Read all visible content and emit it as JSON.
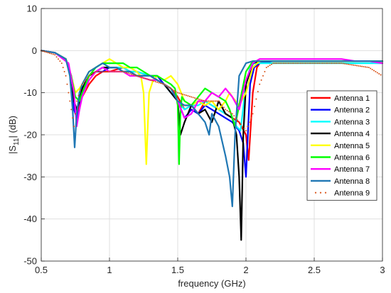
{
  "chart_data": {
    "type": "line",
    "xlabel": "frequency (GHz)",
    "ylabel": "|S11| (dB)",
    "ylabel_parts": {
      "main": "|S",
      "sub": "11",
      "rest": "| (dB)"
    },
    "xlim": [
      0.5,
      3
    ],
    "ylim": [
      -50,
      10
    ],
    "xticks": [
      0.5,
      1,
      1.5,
      2,
      2.5,
      3
    ],
    "yticks": [
      10,
      0,
      -10,
      -20,
      -30,
      -40,
      -50
    ],
    "xtick_labels": [
      "0.5",
      "1",
      "1.5",
      "2",
      "2.5",
      "3"
    ],
    "ytick_labels": [
      "10",
      "0",
      "-10",
      "-20",
      "-30",
      "-40",
      "-50"
    ],
    "grid": true,
    "legend_position": "right",
    "series": [
      {
        "name": "Antenna 1",
        "color": "#ff0000",
        "style": "solid",
        "x": [
          0.5,
          0.6,
          0.68,
          0.72,
          0.74,
          0.76,
          0.78,
          0.8,
          0.85,
          0.9,
          0.95,
          1.0,
          1.05,
          1.1,
          1.15,
          1.2,
          1.3,
          1.35,
          1.4,
          1.45,
          1.5,
          1.55,
          1.6,
          1.65,
          1.7,
          1.75,
          1.8,
          1.85,
          1.9,
          1.95,
          2.0,
          2.02,
          2.05,
          2.08,
          2.1,
          2.15,
          2.2,
          2.3,
          2.4,
          2.5,
          2.6,
          2.7,
          2.8,
          2.9,
          3.0
        ],
        "y": [
          0,
          -0.5,
          -2,
          -6,
          -12,
          -15,
          -13,
          -11,
          -8,
          -6,
          -5,
          -5,
          -4.5,
          -4,
          -5,
          -6,
          -6,
          -7,
          -8,
          -9,
          -11,
          -14,
          -13,
          -15,
          -12,
          -13,
          -14,
          -15,
          -16,
          -17,
          -20,
          -26,
          -10,
          -4,
          -3,
          -2.5,
          -2.5,
          -2.5,
          -2.5,
          -2.5,
          -2.5,
          -2.5,
          -2.5,
          -2.5,
          -2.5
        ]
      },
      {
        "name": "Antenna 2",
        "color": "#0000ff",
        "style": "solid",
        "x": [
          0.5,
          0.6,
          0.68,
          0.72,
          0.74,
          0.76,
          0.78,
          0.8,
          0.85,
          0.9,
          0.95,
          1.0,
          1.05,
          1.1,
          1.15,
          1.2,
          1.3,
          1.35,
          1.4,
          1.45,
          1.5,
          1.55,
          1.6,
          1.65,
          1.7,
          1.75,
          1.8,
          1.85,
          1.9,
          1.95,
          1.98,
          2.0,
          2.03,
          2.06,
          2.1,
          2.2,
          2.3,
          2.4,
          2.5,
          2.6,
          2.7,
          2.8,
          2.9,
          3.0
        ],
        "y": [
          0,
          -0.5,
          -2,
          -7,
          -14,
          -16,
          -14,
          -10,
          -6,
          -5,
          -5,
          -4,
          -4,
          -4,
          -5,
          -5,
          -6,
          -6,
          -8,
          -10,
          -12,
          -16,
          -14,
          -15,
          -13,
          -14,
          -15,
          -16,
          -17,
          -19,
          -22,
          -30,
          -8,
          -4,
          -3,
          -2.5,
          -2.5,
          -2.5,
          -2.5,
          -2.5,
          -2.5,
          -2.5,
          -2.5,
          -2.5
        ]
      },
      {
        "name": "Antenna 3",
        "color": "#00ffff",
        "style": "solid",
        "x": [
          0.5,
          0.6,
          0.68,
          0.72,
          0.74,
          0.76,
          0.78,
          0.8,
          0.85,
          0.9,
          0.95,
          1.0,
          1.05,
          1.1,
          1.15,
          1.2,
          1.3,
          1.35,
          1.4,
          1.45,
          1.5,
          1.55,
          1.6,
          1.65,
          1.7,
          1.75,
          1.8,
          1.85,
          1.9,
          1.93,
          1.96,
          2.0,
          2.03,
          2.06,
          2.1,
          2.2,
          2.3,
          2.4,
          2.5,
          2.6,
          2.7,
          2.8,
          2.9,
          3.0
        ],
        "y": [
          0,
          -0.5,
          -2,
          -6,
          -12,
          -14,
          -12,
          -9,
          -6,
          -5,
          -4,
          -4,
          -4,
          -4,
          -5,
          -5,
          -6,
          -7,
          -8,
          -10,
          -12,
          -14,
          -13,
          -13,
          -12,
          -13,
          -14,
          -15,
          -16,
          -18,
          -19,
          -8,
          -4,
          -3,
          -3,
          -3,
          -3,
          -3,
          -3,
          -3,
          -3,
          -3,
          -3,
          -3
        ]
      },
      {
        "name": "Antenna 4",
        "color": "#000000",
        "style": "solid",
        "x": [
          0.5,
          0.6,
          0.68,
          0.72,
          0.74,
          0.76,
          0.78,
          0.8,
          0.85,
          0.9,
          0.95,
          1.0,
          1.05,
          1.1,
          1.15,
          1.2,
          1.3,
          1.35,
          1.4,
          1.45,
          1.5,
          1.52,
          1.55,
          1.6,
          1.65,
          1.7,
          1.75,
          1.8,
          1.85,
          1.9,
          1.93,
          1.95,
          1.965,
          1.98,
          2.0,
          2.05,
          2.1,
          2.2,
          2.3,
          2.4,
          2.5,
          2.6,
          2.7,
          2.8,
          2.9,
          3.0
        ],
        "y": [
          0,
          -0.5,
          -2,
          -6,
          -12,
          -14,
          -12,
          -9,
          -6,
          -5,
          -4,
          -4,
          -4,
          -5,
          -5,
          -6,
          -6,
          -7,
          -8,
          -10,
          -12,
          -20,
          -17,
          -13,
          -15,
          -14,
          -17,
          -12,
          -15,
          -16,
          -20,
          -30,
          -45,
          -20,
          -8,
          -3,
          -2.5,
          -2.5,
          -2.5,
          -2.5,
          -2.5,
          -2.5,
          -2.5,
          -2.5,
          -2.5,
          -2.5
        ]
      },
      {
        "name": "Antenna 5",
        "color": "#ffff00",
        "style": "solid",
        "x": [
          0.5,
          0.6,
          0.68,
          0.72,
          0.75,
          0.78,
          0.8,
          0.85,
          0.9,
          0.95,
          1.0,
          1.05,
          1.1,
          1.15,
          1.2,
          1.23,
          1.25,
          1.27,
          1.29,
          1.32,
          1.35,
          1.4,
          1.45,
          1.5,
          1.55,
          1.6,
          1.65,
          1.7,
          1.75,
          1.8,
          1.85,
          1.88,
          1.9,
          1.95,
          2.0,
          2.05,
          2.1,
          2.2,
          2.3,
          2.4,
          2.5,
          2.6,
          2.7,
          2.8,
          2.9,
          3.0
        ],
        "y": [
          0,
          -0.5,
          -2,
          -6,
          -10,
          -9,
          -8,
          -5,
          -4,
          -3,
          -2,
          -3,
          -4,
          -4,
          -5,
          -6,
          -10,
          -27,
          -10,
          -7,
          -6,
          -7,
          -6,
          -8,
          -12,
          -13,
          -12,
          -13,
          -12,
          -14,
          -12,
          -10,
          -11,
          -13,
          -10,
          -4,
          -2.5,
          -2.5,
          -2.5,
          -2.5,
          -2.5,
          -2.5,
          -2.5,
          -2.5,
          -2.5,
          -2.5
        ]
      },
      {
        "name": "Antenna 6",
        "color": "#00ff00",
        "style": "solid",
        "x": [
          0.5,
          0.6,
          0.68,
          0.72,
          0.75,
          0.78,
          0.8,
          0.85,
          0.9,
          0.95,
          1.0,
          1.05,
          1.1,
          1.15,
          1.2,
          1.25,
          1.3,
          1.35,
          1.4,
          1.45,
          1.48,
          1.5,
          1.51,
          1.52,
          1.53,
          1.55,
          1.6,
          1.65,
          1.7,
          1.75,
          1.8,
          1.85,
          1.88,
          1.92,
          1.95,
          2.0,
          2.05,
          2.1,
          2.2,
          2.3,
          2.4,
          2.5,
          2.6,
          2.7,
          2.8,
          2.9,
          3.0
        ],
        "y": [
          0,
          -0.5,
          -2,
          -6,
          -11,
          -12,
          -10,
          -6,
          -4,
          -3,
          -3,
          -3,
          -3,
          -4,
          -4,
          -5,
          -6,
          -6,
          -7,
          -8,
          -9,
          -13,
          -27,
          -15,
          -11,
          -12,
          -13,
          -11,
          -9,
          -10,
          -11,
          -12,
          -14,
          -18,
          -13,
          -5,
          -2.5,
          -2.5,
          -2.5,
          -2.5,
          -2.5,
          -2.5,
          -2.5,
          -2.5,
          -2.5,
          -2.5,
          -2.5
        ]
      },
      {
        "name": "Antenna 7",
        "color": "#ff00ff",
        "style": "solid",
        "x": [
          0.5,
          0.6,
          0.7,
          0.74,
          0.76,
          0.78,
          0.8,
          0.85,
          0.9,
          0.95,
          1.0,
          1.05,
          1.1,
          1.15,
          1.2,
          1.3,
          1.35,
          1.4,
          1.45,
          1.5,
          1.55,
          1.6,
          1.65,
          1.7,
          1.75,
          1.8,
          1.85,
          1.9,
          1.95,
          2.0,
          2.05,
          2.1,
          2.2,
          2.3,
          2.4,
          2.5,
          2.6,
          2.7,
          2.8,
          2.9,
          3.0
        ],
        "y": [
          0,
          -0.5,
          -3,
          -10,
          -18,
          -14,
          -11,
          -7,
          -5,
          -4,
          -5,
          -5,
          -5,
          -6,
          -6,
          -7,
          -7,
          -8,
          -9,
          -12,
          -16,
          -15,
          -12,
          -12,
          -10,
          -11,
          -9,
          -11,
          -14,
          -7,
          -3,
          -2,
          -2,
          -2,
          -2,
          -2,
          -2,
          -2,
          -2.5,
          -2.5,
          -3
        ]
      },
      {
        "name": "Antenna 8",
        "color": "#1f77b4",
        "style": "solid",
        "x": [
          0.5,
          0.6,
          0.68,
          0.71,
          0.73,
          0.745,
          0.76,
          0.78,
          0.8,
          0.85,
          0.9,
          0.95,
          1.0,
          1.05,
          1.1,
          1.15,
          1.2,
          1.3,
          1.35,
          1.4,
          1.45,
          1.5,
          1.55,
          1.6,
          1.65,
          1.7,
          1.73,
          1.75,
          1.8,
          1.85,
          1.88,
          1.9,
          1.92,
          1.95,
          2.0,
          2.05,
          2.1,
          2.2,
          2.3,
          2.4,
          2.5,
          2.6,
          2.7,
          2.8,
          2.9,
          3.0
        ],
        "y": [
          0,
          -0.5,
          -2,
          -6,
          -14,
          -23,
          -15,
          -10,
          -8,
          -5,
          -4,
          -3,
          -4,
          -4,
          -5,
          -5,
          -6,
          -6,
          -7,
          -8,
          -9,
          -12,
          -13,
          -13,
          -15,
          -17,
          -20,
          -15,
          -18,
          -25,
          -30,
          -37,
          -20,
          -6,
          -3,
          -2.5,
          -2.5,
          -2.5,
          -2.5,
          -2.5,
          -2.5,
          -2.5,
          -2.5,
          -2.5,
          -2.5,
          -2.5
        ]
      },
      {
        "name": "Antenna 9",
        "color": "#d95319",
        "style": "dotted",
        "x": [
          0.5,
          0.6,
          0.65,
          0.68,
          0.7,
          0.72,
          0.74,
          0.76,
          0.8,
          0.85,
          0.9,
          0.95,
          1.0,
          1.1,
          1.2,
          1.3,
          1.4,
          1.5,
          1.6,
          1.7,
          1.8,
          1.85,
          1.9,
          1.95,
          2.0,
          2.05,
          2.1,
          2.15,
          2.2,
          2.3,
          2.4,
          2.5,
          2.6,
          2.7,
          2.8,
          2.9,
          3.0
        ],
        "y": [
          0,
          -1,
          -3,
          -6,
          -10,
          -14,
          -18,
          -12,
          -8,
          -6,
          -5,
          -5,
          -5,
          -5,
          -6,
          -7,
          -8,
          -10,
          -11,
          -12,
          -12,
          -14,
          -15,
          -17,
          -19,
          -15,
          -8,
          -4,
          -3,
          -3,
          -3,
          -3,
          -3,
          -3,
          -3.5,
          -4,
          -6
        ]
      }
    ]
  }
}
